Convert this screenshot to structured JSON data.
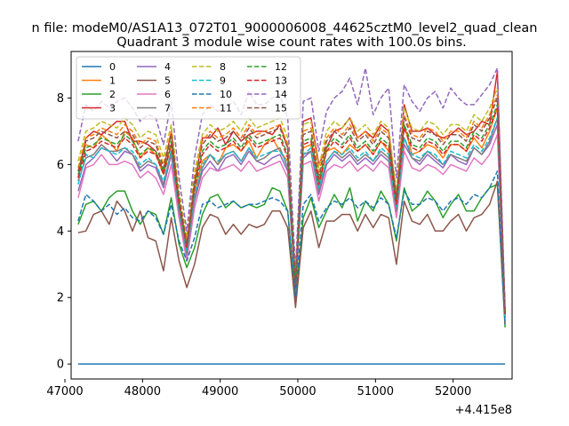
{
  "chart_data": {
    "type": "line",
    "suptitle": "n file: modeM0/AS1A13_072T01_9000006008_44625cztM0_level2_quad_clean",
    "title": "Quadrant 3 module wise count rates with 100.0s bins.",
    "xlabel": "",
    "ylabel": "",
    "offset_text": "+4.415e8",
    "xlim": [
      47080,
      52760
    ],
    "ylim": [
      -0.45,
      9.4
    ],
    "x_ticks": [
      47000,
      48000,
      49000,
      50000,
      51000,
      52000
    ],
    "y_ticks": [
      0,
      2,
      4,
      6,
      8
    ],
    "grid": false,
    "legend": {
      "placement": "top-left",
      "columns": 4
    },
    "x": [
      47170,
      47270,
      47370,
      47470,
      47570,
      47670,
      47770,
      47870,
      47970,
      48070,
      48170,
      48270,
      48370,
      48470,
      48570,
      48670,
      48770,
      48870,
      48970,
      49070,
      49170,
      49270,
      49370,
      49470,
      49570,
      49670,
      49770,
      49870,
      49970,
      50070,
      50170,
      50270,
      50370,
      50470,
      50570,
      50670,
      50770,
      50870,
      50970,
      51070,
      51170,
      51270,
      51370,
      51470,
      51570,
      51670,
      51770,
      51870,
      51970,
      52070,
      52170,
      52270,
      52370,
      52470,
      52570,
      52670
    ],
    "series": [
      {
        "name": "0",
        "color": "#1f77b4",
        "style": "solid",
        "values": [
          0,
          0,
          0,
          0,
          0,
          0,
          0,
          0,
          0,
          0,
          0,
          0,
          0,
          0,
          0,
          0,
          0,
          0,
          0,
          0,
          0,
          0,
          0,
          0,
          0,
          0,
          0,
          0,
          0,
          0,
          0,
          0,
          0,
          0,
          0,
          0,
          0,
          0,
          0,
          0,
          0,
          0,
          0,
          0,
          0,
          0,
          0,
          0,
          0,
          0,
          0,
          0,
          0,
          0,
          0,
          0
        ]
      },
      {
        "name": "1",
        "color": "#ff7f0e",
        "style": "solid",
        "values": [
          5.8,
          6.6,
          6.5,
          6.9,
          6.7,
          6.4,
          7.0,
          6.8,
          6.2,
          6.5,
          6.3,
          5.7,
          6.6,
          4.8,
          3.5,
          5.2,
          6.1,
          6.3,
          6.0,
          6.5,
          6.6,
          6.4,
          6.7,
          6.2,
          6.6,
          6.8,
          6.4,
          6.1,
          2.1,
          6.5,
          6.6,
          5.3,
          6.4,
          6.5,
          6.3,
          6.6,
          6.4,
          6.6,
          6.3,
          6.7,
          6.4,
          4.8,
          7.2,
          6.3,
          6.4,
          6.6,
          6.5,
          6.2,
          6.6,
          6.6,
          6.4,
          6.8,
          6.5,
          7.0,
          7.7,
          1.5
        ]
      },
      {
        "name": "2",
        "color": "#2ca02c",
        "style": "solid",
        "values": [
          4.2,
          4.8,
          4.9,
          4.6,
          5.0,
          5.2,
          5.2,
          4.6,
          4.2,
          4.6,
          4.5,
          3.9,
          5.0,
          3.6,
          2.9,
          3.5,
          4.5,
          5.0,
          5.1,
          4.7,
          4.9,
          4.7,
          4.8,
          4.7,
          4.8,
          5.3,
          5.2,
          4.6,
          1.9,
          4.4,
          5.0,
          4.1,
          4.6,
          5.1,
          4.7,
          5.3,
          4.3,
          4.9,
          4.6,
          5.2,
          4.8,
          3.7,
          5.3,
          4.6,
          4.8,
          5.2,
          4.9,
          4.4,
          4.8,
          5.1,
          4.6,
          4.6,
          5.0,
          5.3,
          5.4,
          1.1
        ]
      },
      {
        "name": "3",
        "color": "#d62728",
        "style": "solid",
        "values": [
          5.6,
          6.8,
          7.0,
          6.9,
          7.1,
          7.3,
          7.3,
          6.7,
          6.7,
          6.6,
          6.4,
          5.8,
          7.0,
          4.9,
          3.6,
          5.4,
          6.8,
          6.8,
          7.1,
          6.6,
          7.0,
          6.7,
          6.9,
          7.0,
          7.0,
          6.9,
          7.2,
          6.5,
          2.4,
          7.3,
          7.4,
          6.0,
          6.5,
          7.0,
          7.1,
          7.4,
          6.8,
          7.0,
          6.8,
          7.2,
          7.0,
          5.0,
          7.8,
          7.0,
          7.0,
          7.1,
          6.9,
          6.8,
          6.9,
          7.1,
          6.9,
          7.0,
          7.3,
          7.2,
          8.8,
          1.5
        ]
      },
      {
        "name": "4",
        "color": "#9467bd",
        "style": "solid",
        "values": [
          5.2,
          6.0,
          6.2,
          6.5,
          6.4,
          6.1,
          6.4,
          6.3,
          5.8,
          6.0,
          5.9,
          5.3,
          6.3,
          4.5,
          3.2,
          4.9,
          5.8,
          6.1,
          5.8,
          6.2,
          6.3,
          6.0,
          6.4,
          6.1,
          6.0,
          6.2,
          6.3,
          5.8,
          2.2,
          6.2,
          6.4,
          5.1,
          6.0,
          6.3,
          6.1,
          6.3,
          6.0,
          6.2,
          6.0,
          6.3,
          6.1,
          4.5,
          6.6,
          6.2,
          6.0,
          6.3,
          6.1,
          5.9,
          6.3,
          6.1,
          6.0,
          6.5,
          6.3,
          6.6,
          7.2,
          1.4
        ]
      },
      {
        "name": "5",
        "color": "#8c564b",
        "style": "solid",
        "values": [
          3.95,
          4.0,
          4.5,
          4.6,
          4.2,
          4.9,
          4.6,
          4.0,
          4.6,
          3.8,
          3.7,
          2.8,
          4.4,
          3.1,
          2.3,
          3.0,
          4.1,
          4.5,
          4.4,
          3.9,
          4.2,
          3.9,
          4.2,
          4.1,
          4.2,
          4.6,
          4.6,
          4.1,
          1.7,
          4.1,
          4.6,
          3.5,
          4.3,
          4.3,
          4.5,
          4.5,
          4.0,
          4.5,
          4.1,
          4.5,
          4.4,
          3.0,
          4.9,
          4.3,
          4.2,
          4.5,
          4.0,
          4.0,
          4.3,
          4.5,
          4.0,
          4.4,
          4.5,
          4.8,
          5.5,
          1.2
        ]
      },
      {
        "name": "6",
        "color": "#e377c2",
        "style": "solid",
        "values": [
          5.0,
          5.9,
          6.0,
          6.3,
          6.0,
          6.0,
          6.1,
          6.0,
          5.6,
          5.8,
          5.6,
          5.1,
          6.0,
          4.4,
          3.1,
          4.7,
          5.6,
          5.9,
          5.8,
          5.9,
          6.0,
          5.8,
          6.1,
          5.8,
          5.9,
          6.0,
          6.1,
          5.6,
          2.2,
          6.0,
          6.1,
          4.9,
          5.8,
          6.0,
          5.9,
          6.1,
          5.8,
          6.0,
          5.8,
          6.1,
          5.9,
          4.4,
          6.4,
          5.9,
          5.8,
          6.0,
          5.9,
          5.7,
          6.0,
          5.9,
          5.8,
          6.2,
          6.0,
          6.3,
          6.9,
          1.4
        ]
      },
      {
        "name": "7",
        "color": "#7f7f7f",
        "style": "solid",
        "values": [
          5.5,
          6.2,
          6.3,
          6.6,
          6.4,
          6.4,
          6.5,
          6.3,
          5.9,
          6.1,
          6.0,
          5.4,
          6.4,
          4.6,
          3.3,
          5.0,
          5.9,
          6.3,
          6.0,
          6.3,
          6.4,
          6.1,
          6.5,
          6.1,
          6.2,
          6.4,
          6.5,
          5.9,
          2.2,
          6.3,
          6.4,
          5.2,
          6.1,
          6.4,
          6.2,
          6.4,
          6.1,
          6.3,
          6.1,
          6.4,
          6.2,
          4.6,
          6.8,
          6.2,
          6.1,
          6.4,
          6.2,
          6.0,
          6.3,
          6.2,
          6.1,
          6.5,
          6.3,
          6.7,
          7.4,
          1.4
        ]
      },
      {
        "name": "8",
        "color": "#bcbd22",
        "style": "dashed",
        "values": [
          6.1,
          7.0,
          7.1,
          7.3,
          7.2,
          7.1,
          7.4,
          7.2,
          6.8,
          7.0,
          6.9,
          6.2,
          7.2,
          5.2,
          3.8,
          5.8,
          6.9,
          7.2,
          7.0,
          7.1,
          7.3,
          7.0,
          7.4,
          7.1,
          7.2,
          7.3,
          7.4,
          6.8,
          2.6,
          7.2,
          7.3,
          5.9,
          7.0,
          7.3,
          7.1,
          7.4,
          7.0,
          7.2,
          6.9,
          7.3,
          7.1,
          5.2,
          7.7,
          7.1,
          7.0,
          7.3,
          7.2,
          6.9,
          7.2,
          7.2,
          7.0,
          7.5,
          7.3,
          7.7,
          8.3,
          1.6
        ]
      },
      {
        "name": "9",
        "color": "#17becf",
        "style": "dashed",
        "values": [
          5.4,
          6.3,
          6.2,
          6.5,
          6.4,
          6.3,
          6.5,
          6.4,
          6.0,
          6.2,
          6.0,
          5.5,
          6.4,
          4.7,
          3.4,
          5.1,
          6.0,
          6.3,
          6.1,
          6.3,
          6.4,
          6.1,
          6.5,
          6.2,
          6.3,
          6.4,
          6.4,
          6.0,
          2.3,
          6.3,
          6.5,
          5.3,
          6.1,
          6.4,
          6.3,
          6.5,
          6.2,
          6.4,
          6.1,
          6.5,
          6.3,
          4.7,
          6.8,
          6.3,
          6.2,
          6.4,
          6.3,
          6.0,
          6.4,
          6.3,
          6.2,
          6.6,
          6.4,
          6.8,
          7.4,
          1.4
        ]
      },
      {
        "name": "10",
        "color": "#1f77b4",
        "style": "dashed",
        "values": [
          4.3,
          5.1,
          4.9,
          4.6,
          4.8,
          4.5,
          4.7,
          4.4,
          4.3,
          4.6,
          4.4,
          3.9,
          4.8,
          3.7,
          3.1,
          3.8,
          4.8,
          4.9,
          4.7,
          4.8,
          4.9,
          4.7,
          4.8,
          4.8,
          4.9,
          5.0,
          4.9,
          4.6,
          2.0,
          4.8,
          5.1,
          4.3,
          4.7,
          4.9,
          4.8,
          5.0,
          4.7,
          4.9,
          4.7,
          5.0,
          4.8,
          3.8,
          5.2,
          4.8,
          4.8,
          5.0,
          4.9,
          4.6,
          4.9,
          5.0,
          4.8,
          5.1,
          5.0,
          5.3,
          5.8,
          1.2
        ]
      },
      {
        "name": "11",
        "color": "#ff7f0e",
        "style": "dashed",
        "values": [
          5.9,
          6.8,
          6.9,
          7.1,
          7.0,
          6.9,
          7.2,
          7.0,
          6.6,
          6.8,
          6.7,
          6.0,
          7.0,
          5.0,
          3.7,
          5.6,
          6.7,
          7.0,
          6.8,
          6.9,
          7.1,
          6.8,
          7.2,
          6.9,
          7.0,
          7.1,
          7.2,
          6.6,
          2.5,
          7.0,
          7.1,
          5.7,
          6.8,
          7.1,
          6.9,
          7.2,
          6.8,
          7.0,
          6.7,
          7.1,
          6.9,
          5.0,
          7.5,
          6.9,
          6.8,
          7.1,
          7.0,
          6.7,
          7.0,
          7.0,
          6.8,
          7.3,
          7.1,
          7.5,
          8.1,
          1.6
        ]
      },
      {
        "name": "12",
        "color": "#2ca02c",
        "style": "dashed",
        "values": [
          5.7,
          6.5,
          6.6,
          6.8,
          6.7,
          6.6,
          6.9,
          6.7,
          6.3,
          6.5,
          6.4,
          5.8,
          6.7,
          4.9,
          3.5,
          5.4,
          6.4,
          6.7,
          6.5,
          6.6,
          6.8,
          6.5,
          6.9,
          6.6,
          6.7,
          6.8,
          6.9,
          6.3,
          2.4,
          6.7,
          6.8,
          5.5,
          6.5,
          6.8,
          6.6,
          6.9,
          6.5,
          6.7,
          6.4,
          6.8,
          6.6,
          4.9,
          7.2,
          6.6,
          6.5,
          6.8,
          6.7,
          6.4,
          6.7,
          6.7,
          6.5,
          7.0,
          6.8,
          7.2,
          7.8,
          1.5
        ]
      },
      {
        "name": "13",
        "color": "#d62728",
        "style": "dashed",
        "values": [
          5.6,
          6.4,
          6.5,
          6.7,
          6.6,
          6.5,
          6.8,
          6.6,
          6.2,
          6.4,
          6.3,
          5.7,
          6.6,
          4.8,
          3.5,
          5.3,
          6.3,
          6.6,
          6.4,
          6.5,
          6.7,
          6.4,
          6.8,
          6.5,
          6.6,
          6.7,
          6.8,
          6.2,
          2.3,
          6.6,
          6.7,
          5.4,
          6.4,
          6.7,
          6.5,
          6.8,
          6.4,
          6.6,
          6.3,
          6.7,
          6.5,
          4.8,
          7.1,
          6.5,
          6.4,
          6.7,
          6.6,
          6.3,
          6.6,
          6.6,
          6.4,
          6.9,
          6.7,
          7.1,
          7.7,
          1.5
        ]
      },
      {
        "name": "14",
        "color": "#9467bd",
        "style": "dashed",
        "values": [
          6.7,
          7.8,
          7.6,
          7.9,
          7.7,
          7.9,
          8.0,
          7.7,
          7.3,
          7.5,
          7.4,
          6.6,
          7.9,
          5.6,
          4.0,
          6.2,
          7.5,
          7.8,
          7.6,
          7.7,
          7.9,
          7.5,
          8.2,
          7.8,
          7.8,
          8.0,
          8.1,
          7.4,
          2.8,
          7.9,
          8.0,
          6.4,
          7.6,
          8.0,
          8.2,
          8.6,
          7.8,
          8.9,
          7.5,
          8.0,
          8.3,
          5.6,
          8.4,
          7.9,
          7.6,
          8.0,
          8.2,
          7.7,
          8.3,
          8.0,
          7.8,
          7.8,
          8.1,
          8.4,
          8.9,
          1.7
        ]
      },
      {
        "name": "15",
        "color": "#8c564b",
        "style": "dashed",
        "values": [
          5.8,
          6.7,
          6.8,
          7.0,
          6.9,
          6.8,
          7.0,
          6.9,
          6.5,
          6.7,
          6.6,
          5.9,
          6.9,
          5.0,
          3.6,
          5.5,
          6.6,
          6.9,
          6.7,
          6.8,
          7.0,
          6.7,
          7.1,
          6.8,
          6.9,
          7.0,
          7.1,
          6.5,
          2.4,
          6.9,
          7.0,
          5.6,
          6.7,
          7.0,
          6.8,
          7.1,
          6.7,
          6.9,
          6.6,
          7.0,
          6.8,
          5.0,
          7.4,
          6.8,
          6.7,
          7.0,
          6.9,
          6.6,
          6.9,
          6.9,
          6.7,
          7.2,
          7.0,
          7.4,
          8.0,
          1.6
        ]
      }
    ]
  }
}
